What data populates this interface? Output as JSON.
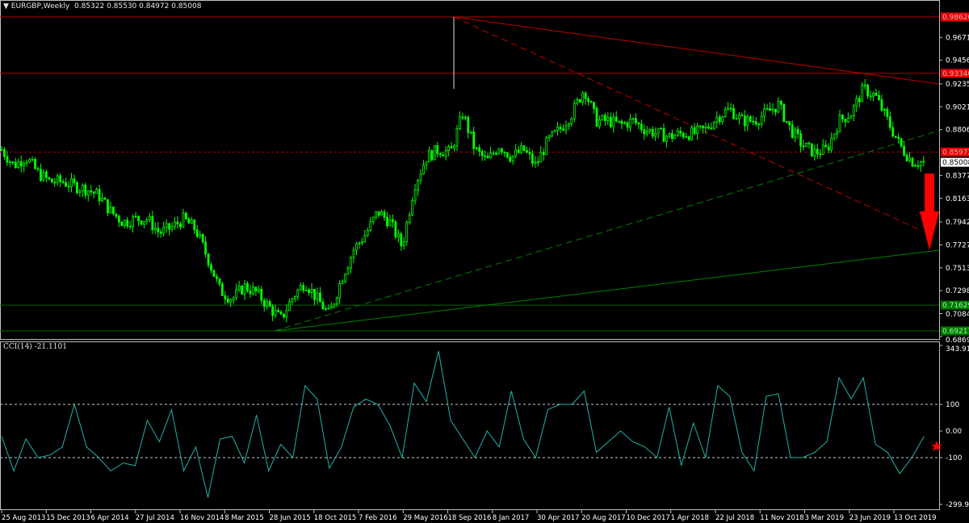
{
  "header": {
    "symbol": "EURGBP,Weekly",
    "ohlc": "0.85322 0.85530 0.84972 0.85008"
  },
  "indicator": {
    "label": "CCI(14) -21.1101"
  },
  "colors": {
    "bull": "#00ff00",
    "resistance": "#ff0000",
    "support": "#007700",
    "cci": "#20b2aa",
    "current": "#ffffff",
    "arrow": "#ff0000"
  },
  "chart_data": [
    {
      "type": "candlestick",
      "title": "EURGBP,Weekly",
      "price_axis_ticks": [
        "0.96710",
        "0.94565",
        "0.92355",
        "0.90210",
        "0.88065",
        "0.83775",
        "0.81630",
        "0.79420",
        "0.77275",
        "0.75130",
        "0.72985",
        "0.70840",
        "0.68695"
      ],
      "price_levels": [
        {
          "label": "0.98620",
          "value": 0.9862,
          "color": "#ff0000",
          "style": "solid"
        },
        {
          "label": "0.93340",
          "value": 0.9334,
          "color": "#ff0000",
          "style": "solid"
        },
        {
          "label": "0.85972",
          "value": 0.85972,
          "color": "#ff0000",
          "style": "dashed"
        },
        {
          "label": "0.85008",
          "value": 0.85008,
          "color": "#ffffff",
          "style": "current"
        },
        {
          "label": "0.71629",
          "value": 0.71629,
          "color": "#007700",
          "style": "solid"
        },
        {
          "label": "0.69217",
          "value": 0.69217,
          "color": "#007700",
          "style": "solid"
        }
      ],
      "ylim": [
        0.68695,
        0.9862
      ],
      "x_tick_labels": [
        "25 Aug 2013",
        "15 Dec 2013",
        "6 Apr 2014",
        "27 Jul 2014",
        "16 Nov 2014",
        "8 Mar 2015",
        "28 Jun 2015",
        "18 Oct 2015",
        "7 Feb 2016",
        "29 May 2016",
        "18 Sep 2016",
        "8 Jan 2017",
        "30 Apr 2017",
        "20 Aug 2017",
        "10 Dec 2017",
        "1 Apr 2018",
        "22 Jul 2018",
        "11 Nov 2018",
        "3 Mar 2019",
        "23 Jun 2019",
        "13 Oct 2019"
      ],
      "monthly_close_approx": {
        "start": "Aug 2013",
        "end": "Dec 2019",
        "values": [
          0.862,
          0.847,
          0.855,
          0.84,
          0.832,
          0.832,
          0.828,
          0.825,
          0.819,
          0.804,
          0.794,
          0.797,
          0.797,
          0.784,
          0.789,
          0.797,
          0.787,
          0.76,
          0.73,
          0.722,
          0.734,
          0.728,
          0.715,
          0.703,
          0.724,
          0.738,
          0.722,
          0.707,
          0.741,
          0.768,
          0.783,
          0.804,
          0.794,
          0.771,
          0.828,
          0.855,
          0.862,
          0.859,
          0.896,
          0.862,
          0.851,
          0.866,
          0.855,
          0.862,
          0.847,
          0.87,
          0.881,
          0.896,
          0.919,
          0.889,
          0.889,
          0.885,
          0.889,
          0.881,
          0.877,
          0.874,
          0.877,
          0.877,
          0.881,
          0.893,
          0.9,
          0.889,
          0.889,
          0.896,
          0.904,
          0.881,
          0.866,
          0.859,
          0.862,
          0.889,
          0.896,
          0.919,
          0.912,
          0.889,
          0.866,
          0.851,
          0.85
        ]
      }
    },
    {
      "type": "line",
      "title": "CCI(14) -21.1101",
      "y_ticks": [
        "343.9122",
        "100",
        "0.00",
        "-100",
        "-299.9139"
      ],
      "ylim": [
        -299.9139,
        343.9122
      ],
      "levels": [
        100,
        -100
      ],
      "monthly_values_approx": [
        -20,
        -150,
        -30,
        -100,
        -90,
        -60,
        100,
        -60,
        -100,
        -150,
        -120,
        -130,
        40,
        -40,
        80,
        -150,
        -60,
        -250,
        -30,
        -20,
        -120,
        60,
        -150,
        -50,
        -100,
        170,
        120,
        -140,
        -60,
        90,
        120,
        100,
        20,
        -100,
        180,
        110,
        300,
        40,
        -30,
        -100,
        0,
        -60,
        150,
        -30,
        -100,
        80,
        100,
        100,
        150,
        -80,
        -40,
        0,
        -40,
        -60,
        -100,
        90,
        -130,
        30,
        -100,
        170,
        130,
        -80,
        -150,
        130,
        140,
        -100,
        -100,
        -80,
        -40,
        200,
        120,
        200,
        -50,
        -80,
        -160,
        -100,
        -20
      ]
    }
  ]
}
